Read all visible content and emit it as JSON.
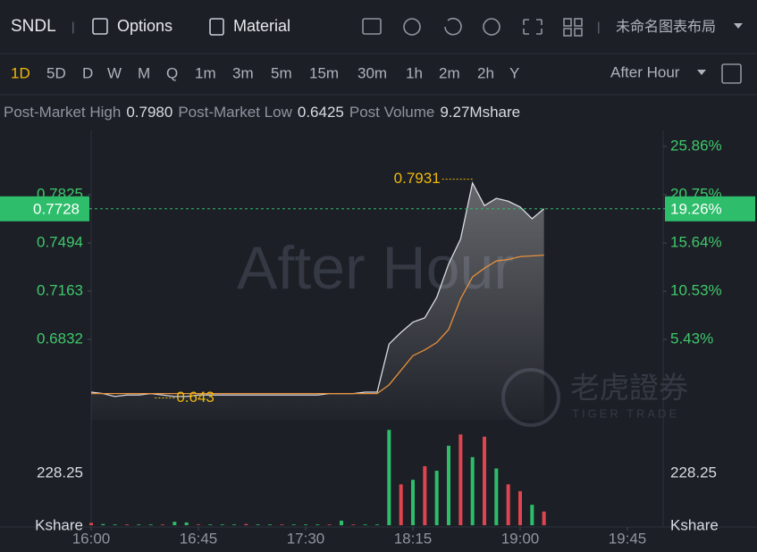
{
  "header": {
    "symbol": "SNDL",
    "options": "Options",
    "material": "Material",
    "layout": "未命名图表布局"
  },
  "timeframes": [
    "1D",
    "5D",
    "D",
    "W",
    "M",
    "Q",
    "1m",
    "3m",
    "5m",
    "15m",
    "30m",
    "1h",
    "2m",
    "2h",
    "Y"
  ],
  "session": "After Hour",
  "info": {
    "high_label": "Post-Market High",
    "high": 0.798,
    "high_text": "0.7980",
    "low_label": "Post-Market Low",
    "low": 0.6425,
    "volume_label": "Post Volume",
    "volume": "9.27Mshare"
  },
  "watermark": {
    "main": "After Hour",
    "brand": "老虎證券",
    "brand_en": "TIGER TRADE"
  },
  "chart_data": [
    {
      "type": "line",
      "x": [
        "16:00",
        "16:05",
        "16:10",
        "16:15",
        "16:20",
        "16:25",
        "16:30",
        "16:35",
        "16:40",
        "16:45",
        "16:50",
        "16:55",
        "17:00",
        "17:05",
        "17:10",
        "17:15",
        "17:20",
        "17:25",
        "17:30",
        "17:35",
        "17:40",
        "17:45",
        "17:50",
        "17:55",
        "18:00",
        "18:05",
        "18:10",
        "18:15",
        "18:20",
        "18:25",
        "18:30",
        "18:35",
        "18:40",
        "18:45",
        "18:50",
        "18:55",
        "19:00",
        "19:05",
        "19:10"
      ],
      "series": [
        {
          "color": "#d9dce3",
          "values": [
            0.647,
            0.646,
            0.644,
            0.645,
            0.645,
            0.646,
            0.645,
            0.644,
            0.644,
            0.645,
            0.645,
            0.645,
            0.645,
            0.645,
            0.645,
            0.645,
            0.645,
            0.645,
            0.645,
            0.645,
            0.646,
            0.646,
            0.646,
            0.647,
            0.647,
            0.68,
            0.688,
            0.695,
            0.698,
            0.712,
            0.735,
            0.752,
            0.7905,
            0.775,
            0.78,
            0.778,
            0.774,
            0.766,
            0.7728
          ]
        },
        {
          "color": "#e8903a",
          "values": [
            0.646,
            0.646,
            0.646,
            0.646,
            0.646,
            0.646,
            0.646,
            0.646,
            0.646,
            0.646,
            0.646,
            0.646,
            0.646,
            0.646,
            0.646,
            0.646,
            0.646,
            0.646,
            0.646,
            0.646,
            0.646,
            0.646,
            0.646,
            0.646,
            0.646,
            0.652,
            0.662,
            0.672,
            0.676,
            0.681,
            0.69,
            0.711,
            0.726,
            0.732,
            0.737,
            0.738,
            0.74,
            0.7405,
            0.741
          ]
        }
      ],
      "xlim": [
        "16:00",
        "20:00"
      ],
      "xticks": [
        "16:00",
        "16:45",
        "17:30",
        "18:15",
        "19:00",
        "19:45"
      ],
      "ylim": [
        0.628,
        0.8266
      ],
      "yticks": [
        0.7825,
        0.7494,
        0.7163,
        0.6832
      ],
      "y2lim": [
        -3.07,
        27.56
      ],
      "y2ticks": [
        {
          "value": 25.86,
          "label": "25.86%"
        },
        {
          "value": 20.75,
          "label": "20.75%"
        },
        {
          "value": 15.64,
          "label": "15.64%"
        },
        {
          "value": 10.53,
          "label": "10.53%"
        },
        {
          "value": 5.43,
          "label": "5.43%"
        }
      ],
      "current": {
        "price": 0.7728,
        "change": {
          "value": 19.26,
          "label": "19.26%"
        },
        "color": "#2ebd6b"
      },
      "annotations": [
        {
          "x": "18:40",
          "value": 0.7931,
          "side": "left"
        },
        {
          "x": "16:35",
          "value": 0.643,
          "side": "right"
        }
      ],
      "grid": false
    },
    {
      "type": "bar",
      "values": [
        10,
        5,
        3,
        3,
        3,
        3,
        3,
        15,
        12,
        3,
        3,
        3,
        3,
        5,
        3,
        3,
        3,
        3,
        3,
        3,
        3,
        20,
        3,
        3,
        3,
        420,
        180,
        200,
        260,
        240,
        350,
        400,
        300,
        390,
        250,
        180,
        150,
        90,
        60
      ],
      "colors": [
        "#e0454f",
        "#2ebd6b",
        "#2ebd6b",
        "#e0454f",
        "#2ebd6b",
        "#2ebd6b",
        "#e0454f",
        "#2ebd6b",
        "#2ebd6b",
        "#e0454f",
        "#2ebd6b",
        "#2ebd6b",
        "#2ebd6b",
        "#e0454f",
        "#2ebd6b",
        "#2ebd6b",
        "#e0454f",
        "#2ebd6b",
        "#2ebd6b",
        "#2ebd6b",
        "#e0454f",
        "#2ebd6b",
        "#e0454f",
        "#2ebd6b",
        "#2ebd6b",
        "#2ebd6b",
        "#e0454f",
        "#2ebd6b",
        "#e0454f",
        "#2ebd6b",
        "#2ebd6b",
        "#e0454f",
        "#2ebd6b",
        "#e0454f",
        "#2ebd6b",
        "#e0454f",
        "#e0454f",
        "#2ebd6b",
        "#e0454f"
      ],
      "ylim": [
        0,
        464.4
      ],
      "yticks": [
        228.25
      ],
      "unit": "Kshare"
    }
  ]
}
